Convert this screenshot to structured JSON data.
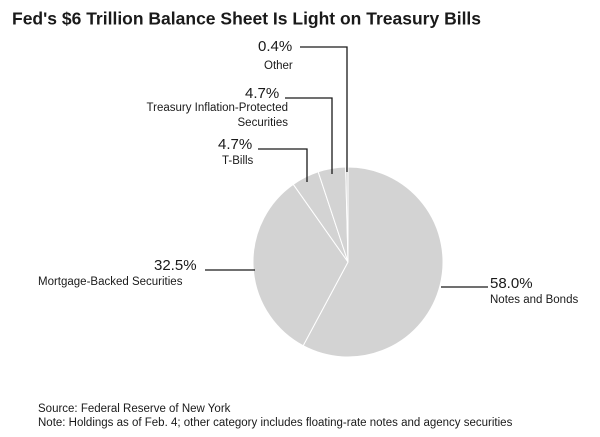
{
  "chart_data": {
    "type": "pie",
    "title": "Fed's $6 Trillion Balance Sheet Is Light on Treasury Bills",
    "categories": [
      "Notes and Bonds",
      "Mortgage-Backed Securities",
      "T-Bills",
      "Treasury Inflation-Protected Securities",
      "Other"
    ],
    "values": [
      58.0,
      32.5,
      4.7,
      4.7,
      0.4
    ],
    "value_labels": [
      "58.0%",
      "32.5%",
      "4.7%",
      "4.7%",
      "0.4%"
    ],
    "color": "#d3d3d3",
    "source": "Source: Federal Reserve of New York",
    "note": "Note: Holdings as of Feb. 4; other category includes floating-rate notes and agency securities"
  }
}
